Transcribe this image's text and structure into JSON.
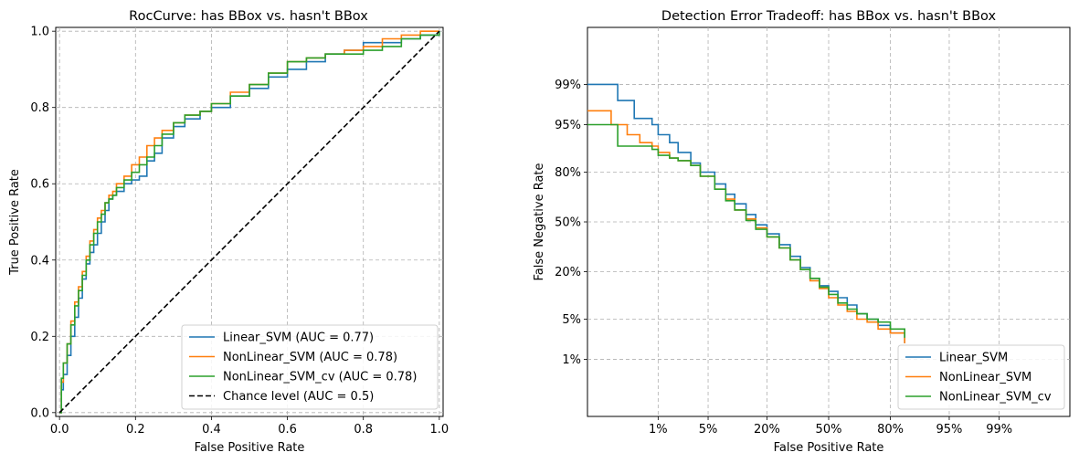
{
  "chart_data": [
    {
      "type": "line",
      "title": "RocCurve: has BBox vs. hasn't BBox",
      "xlabel": "False Positive Rate",
      "ylabel": "True Positive Rate",
      "xlim": [
        -0.01,
        1.01
      ],
      "ylim": [
        -0.01,
        1.01
      ],
      "xticks": [
        "0.0",
        "0.2",
        "0.4",
        "0.6",
        "0.8",
        "1.0"
      ],
      "yticks": [
        "0.0",
        "0.2",
        "0.4",
        "0.6",
        "0.8",
        "1.0"
      ],
      "grid": true,
      "legend_position": "lower-right",
      "series": [
        {
          "name": "Linear_SVM (AUC = 0.77)",
          "color": "#1f77b4",
          "dash": "solid",
          "x": [
            0,
            0.005,
            0.01,
            0.02,
            0.03,
            0.04,
            0.05,
            0.06,
            0.07,
            0.08,
            0.09,
            0.1,
            0.11,
            0.12,
            0.13,
            0.14,
            0.15,
            0.17,
            0.19,
            0.21,
            0.23,
            0.25,
            0.27,
            0.3,
            0.33,
            0.37,
            0.4,
            0.45,
            0.5,
            0.55,
            0.6,
            0.65,
            0.7,
            0.75,
            0.8,
            0.85,
            0.9,
            0.95,
            1.0
          ],
          "y": [
            0,
            0.06,
            0.1,
            0.15,
            0.2,
            0.25,
            0.3,
            0.35,
            0.39,
            0.42,
            0.44,
            0.47,
            0.5,
            0.53,
            0.56,
            0.57,
            0.58,
            0.6,
            0.61,
            0.62,
            0.66,
            0.68,
            0.72,
            0.75,
            0.77,
            0.79,
            0.8,
            0.83,
            0.85,
            0.88,
            0.9,
            0.92,
            0.94,
            0.95,
            0.97,
            0.97,
            0.98,
            0.99,
            1.0
          ]
        },
        {
          "name": "NonLinear_SVM (AUC = 0.78)",
          "color": "#ff7f0e",
          "dash": "solid",
          "x": [
            0,
            0.005,
            0.01,
            0.02,
            0.03,
            0.04,
            0.05,
            0.06,
            0.07,
            0.08,
            0.09,
            0.1,
            0.11,
            0.12,
            0.13,
            0.14,
            0.15,
            0.17,
            0.19,
            0.21,
            0.23,
            0.25,
            0.27,
            0.3,
            0.33,
            0.37,
            0.4,
            0.45,
            0.5,
            0.55,
            0.6,
            0.65,
            0.7,
            0.75,
            0.8,
            0.85,
            0.9,
            0.95,
            1.0
          ],
          "y": [
            0,
            0.08,
            0.13,
            0.18,
            0.24,
            0.29,
            0.33,
            0.37,
            0.41,
            0.45,
            0.48,
            0.51,
            0.53,
            0.55,
            0.57,
            0.58,
            0.6,
            0.62,
            0.65,
            0.67,
            0.7,
            0.72,
            0.74,
            0.76,
            0.78,
            0.79,
            0.81,
            0.84,
            0.86,
            0.89,
            0.92,
            0.93,
            0.94,
            0.95,
            0.96,
            0.98,
            0.99,
            1.0,
            1.0
          ]
        },
        {
          "name": "NonLinear_SVM_cv (AUC = 0.78)",
          "color": "#2ca02c",
          "dash": "solid",
          "x": [
            0,
            0.005,
            0.01,
            0.02,
            0.03,
            0.04,
            0.05,
            0.06,
            0.07,
            0.08,
            0.09,
            0.1,
            0.11,
            0.12,
            0.13,
            0.14,
            0.15,
            0.17,
            0.19,
            0.21,
            0.23,
            0.25,
            0.27,
            0.3,
            0.33,
            0.37,
            0.4,
            0.45,
            0.5,
            0.55,
            0.6,
            0.65,
            0.7,
            0.75,
            0.8,
            0.85,
            0.9,
            0.95,
            1.0
          ],
          "y": [
            0,
            0.09,
            0.13,
            0.18,
            0.23,
            0.28,
            0.32,
            0.36,
            0.4,
            0.44,
            0.47,
            0.5,
            0.52,
            0.55,
            0.56,
            0.57,
            0.59,
            0.61,
            0.63,
            0.65,
            0.67,
            0.7,
            0.73,
            0.76,
            0.78,
            0.79,
            0.81,
            0.83,
            0.86,
            0.89,
            0.92,
            0.93,
            0.94,
            0.94,
            0.95,
            0.96,
            0.98,
            0.99,
            1.0
          ]
        },
        {
          "name": "Chance level (AUC = 0.5)",
          "color": "#000000",
          "dash": "dashed",
          "x": [
            0,
            1
          ],
          "y": [
            0,
            1
          ]
        }
      ]
    },
    {
      "type": "line",
      "title": "Detection Error Tradeoff: has BBox vs. hasn't BBox",
      "xlabel": "False Positive Rate",
      "ylabel": "False Negative Rate",
      "scale": "normal-deviate (probit)",
      "xlim": [
        0.0005,
        0.9995
      ],
      "ylim": [
        0.0005,
        0.9995
      ],
      "xticks": [
        "1%",
        "5%",
        "20%",
        "50%",
        "80%",
        "95%",
        "99%"
      ],
      "yticks": [
        "1%",
        "5%",
        "20%",
        "50%",
        "80%",
        "95%",
        "99%"
      ],
      "grid": true,
      "legend_position": "lower-right",
      "series": [
        {
          "name": "Linear_SVM",
          "color": "#1f77b4",
          "x": [
            0.0005,
            0.002,
            0.002,
            0.004,
            0.004,
            0.006,
            0.008,
            0.01,
            0.015,
            0.02,
            0.03,
            0.04,
            0.06,
            0.08,
            0.1,
            0.13,
            0.16,
            0.2,
            0.25,
            0.3,
            0.35,
            0.4,
            0.45,
            0.5,
            0.55,
            0.6,
            0.65,
            0.7,
            0.75,
            0.8,
            0.85
          ],
          "y": [
            0.99,
            0.99,
            0.98,
            0.98,
            0.96,
            0.96,
            0.95,
            0.93,
            0.91,
            0.88,
            0.84,
            0.8,
            0.74,
            0.68,
            0.62,
            0.55,
            0.48,
            0.42,
            0.35,
            0.28,
            0.22,
            0.17,
            0.14,
            0.12,
            0.1,
            0.08,
            0.06,
            0.05,
            0.04,
            0.03,
            0.02
          ]
        },
        {
          "name": "NonLinear_SVM",
          "color": "#ff7f0e",
          "x": [
            0.0005,
            0.0015,
            0.0015,
            0.003,
            0.003,
            0.005,
            0.008,
            0.01,
            0.015,
            0.02,
            0.03,
            0.04,
            0.06,
            0.08,
            0.1,
            0.13,
            0.16,
            0.2,
            0.25,
            0.3,
            0.35,
            0.4,
            0.45,
            0.5,
            0.55,
            0.6,
            0.65,
            0.7,
            0.75,
            0.8,
            0.85
          ],
          "y": [
            0.97,
            0.97,
            0.95,
            0.95,
            0.93,
            0.91,
            0.9,
            0.88,
            0.86,
            0.85,
            0.83,
            0.78,
            0.71,
            0.65,
            0.58,
            0.52,
            0.46,
            0.4,
            0.33,
            0.26,
            0.21,
            0.16,
            0.13,
            0.1,
            0.08,
            0.065,
            0.05,
            0.045,
            0.035,
            0.03,
            0.02
          ]
        },
        {
          "name": "NonLinear_SVM_cv",
          "color": "#2ca02c",
          "x": [
            0.0005,
            0.002,
            0.002,
            0.004,
            0.006,
            0.008,
            0.01,
            0.015,
            0.02,
            0.03,
            0.04,
            0.06,
            0.08,
            0.1,
            0.13,
            0.16,
            0.2,
            0.25,
            0.3,
            0.35,
            0.4,
            0.45,
            0.5,
            0.55,
            0.6,
            0.65,
            0.7,
            0.75,
            0.8,
            0.85
          ],
          "y": [
            0.95,
            0.95,
            0.9,
            0.9,
            0.9,
            0.89,
            0.87,
            0.86,
            0.85,
            0.83,
            0.78,
            0.71,
            0.64,
            0.58,
            0.51,
            0.45,
            0.4,
            0.33,
            0.26,
            0.21,
            0.17,
            0.135,
            0.11,
            0.085,
            0.07,
            0.06,
            0.05,
            0.045,
            0.035,
            0.025
          ]
        }
      ]
    }
  ]
}
